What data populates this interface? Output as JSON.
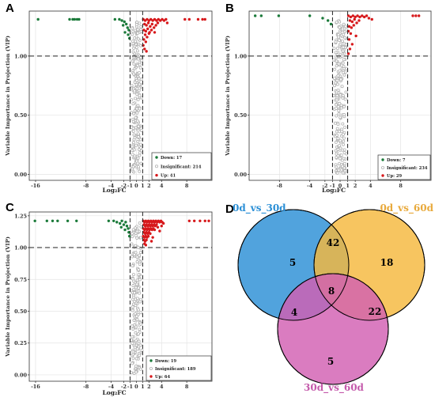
{
  "figure": {
    "panel_letters": [
      "A",
      "B",
      "C",
      "D"
    ],
    "colors": {
      "down": "#1b7a3a",
      "insignificant": "#b3b3b3",
      "up": "#d7191c",
      "venn_a": "#2b8fd6",
      "venn_b": "#f5b83d",
      "venn_c": "#d25fb2",
      "venn_a_label": "#2b8fd6",
      "venn_b_label": "#e8a93b",
      "venn_c_label": "#c45aab"
    }
  },
  "chart_data": [
    {
      "id": "A",
      "type": "scatter",
      "ylabel": "Variable Importance in Projection (VIP)",
      "xlabel": "Log₂FC",
      "xlim": [
        -17,
        12
      ],
      "ylim": [
        -0.05,
        1.38
      ],
      "x_ticks": [
        -16,
        -8,
        -4,
        -2,
        -1,
        0,
        1,
        2,
        4,
        8
      ],
      "x_tick_labels": [
        "-16",
        "-8",
        "-4",
        "-2",
        "-1",
        "0",
        "1",
        "2",
        "4",
        "8"
      ],
      "y_ticks": [
        0.0,
        0.5,
        1.0
      ],
      "y_tick_labels": [
        "0.00",
        "0.50",
        "1.00"
      ],
      "threshold_vlines": [
        -1,
        1
      ],
      "threshold_hline": 1.0,
      "grid": true,
      "legend_position": "bottom-right",
      "legend": [
        {
          "group": "down",
          "label": "Down: 17"
        },
        {
          "group": "insignificant",
          "label": "Insignificant: 214"
        },
        {
          "group": "up",
          "label": "Up: 41"
        }
      ],
      "counts": {
        "down": 17,
        "insignificant": 214,
        "up": 41
      },
      "down_points": [
        [
          -15.6,
          1.31
        ],
        [
          -10.6,
          1.31
        ],
        [
          -10.1,
          1.31
        ],
        [
          -9.8,
          1.31
        ],
        [
          -9.4,
          1.31
        ],
        [
          -9.1,
          1.31
        ],
        [
          -3.4,
          1.31
        ],
        [
          -2.7,
          1.31
        ],
        [
          -2.3,
          1.3
        ],
        [
          -1.9,
          1.29
        ],
        [
          -1.6,
          1.27
        ],
        [
          -1.4,
          1.24
        ],
        [
          -1.2,
          1.22
        ],
        [
          -1.8,
          1.2
        ],
        [
          -1.3,
          1.18
        ],
        [
          -1.1,
          1.15
        ],
        [
          -2.1,
          1.26
        ]
      ],
      "up_points": [
        [
          1.1,
          1.31
        ],
        [
          1.4,
          1.3
        ],
        [
          1.7,
          1.31
        ],
        [
          2.0,
          1.3
        ],
        [
          2.3,
          1.31
        ],
        [
          2.6,
          1.3
        ],
        [
          2.9,
          1.31
        ],
        [
          3.2,
          1.3
        ],
        [
          3.5,
          1.31
        ],
        [
          3.8,
          1.3
        ],
        [
          4.1,
          1.31
        ],
        [
          4.4,
          1.3
        ],
        [
          4.7,
          1.31
        ],
        [
          1.3,
          1.27
        ],
        [
          1.6,
          1.26
        ],
        [
          1.9,
          1.28
        ],
        [
          2.2,
          1.25
        ],
        [
          2.5,
          1.27
        ],
        [
          2.8,
          1.24
        ],
        [
          3.1,
          1.26
        ],
        [
          1.2,
          1.22
        ],
        [
          1.5,
          1.21
        ],
        [
          1.8,
          1.23
        ],
        [
          2.1,
          1.2
        ],
        [
          2.4,
          1.22
        ],
        [
          1.4,
          1.18
        ],
        [
          1.7,
          1.16
        ],
        [
          2.0,
          1.19
        ],
        [
          1.2,
          1.14
        ],
        [
          1.5,
          1.12
        ],
        [
          1.1,
          1.09
        ],
        [
          1.3,
          1.06
        ],
        [
          1.6,
          1.04
        ],
        [
          2.9,
          1.2
        ],
        [
          3.4,
          1.28
        ],
        [
          7.7,
          1.31
        ],
        [
          8.4,
          1.31
        ],
        [
          9.8,
          1.31
        ],
        [
          10.5,
          1.31
        ],
        [
          10.9,
          1.31
        ],
        [
          4.9,
          1.28
        ]
      ]
    },
    {
      "id": "B",
      "type": "scatter",
      "ylabel": "Variable Importance in Projection (VIP)",
      "xlabel": "Log₂FC",
      "xlim": [
        -12,
        12
      ],
      "ylim": [
        -0.05,
        1.38
      ],
      "x_ticks": [
        -8,
        -4,
        -2,
        -1,
        0,
        1,
        2,
        4,
        8
      ],
      "x_tick_labels": [
        "-8",
        "-4",
        "-2",
        "-1",
        "0",
        "1",
        "2",
        "4",
        "8"
      ],
      "y_ticks": [
        0.0,
        0.5,
        1.0
      ],
      "y_tick_labels": [
        "0.00",
        "0.50",
        "1.00"
      ],
      "threshold_vlines": [
        -1,
        1
      ],
      "threshold_hline": 1.0,
      "grid": true,
      "legend_position": "bottom-right",
      "legend": [
        {
          "group": "down",
          "label": "Down: 7"
        },
        {
          "group": "insignificant",
          "label": "Insignificant: 234"
        },
        {
          "group": "up",
          "label": "Up: 29"
        }
      ],
      "counts": {
        "down": 7,
        "insignificant": 234,
        "up": 29
      },
      "down_points": [
        [
          -11.2,
          1.34
        ],
        [
          -10.4,
          1.34
        ],
        [
          -8.1,
          1.34
        ],
        [
          -4.0,
          1.34
        ],
        [
          -2.3,
          1.32
        ],
        [
          -1.6,
          1.3
        ],
        [
          -1.2,
          1.27
        ]
      ],
      "up_points": [
        [
          1.1,
          1.34
        ],
        [
          1.4,
          1.33
        ],
        [
          1.7,
          1.34
        ],
        [
          2.0,
          1.33
        ],
        [
          2.3,
          1.34
        ],
        [
          2.6,
          1.33
        ],
        [
          2.9,
          1.34
        ],
        [
          3.2,
          1.33
        ],
        [
          3.5,
          1.34
        ],
        [
          1.3,
          1.3
        ],
        [
          1.6,
          1.29
        ],
        [
          1.9,
          1.31
        ],
        [
          2.2,
          1.28
        ],
        [
          2.5,
          1.3
        ],
        [
          1.2,
          1.25
        ],
        [
          1.5,
          1.24
        ],
        [
          1.8,
          1.26
        ],
        [
          1.1,
          1.21
        ],
        [
          1.4,
          1.19
        ],
        [
          1.2,
          1.14
        ],
        [
          1.6,
          1.1
        ],
        [
          1.3,
          1.06
        ],
        [
          1.1,
          1.02
        ],
        [
          2.1,
          1.17
        ],
        [
          3.8,
          1.32
        ],
        [
          9.6,
          1.34
        ],
        [
          10.0,
          1.34
        ],
        [
          10.4,
          1.34
        ],
        [
          4.2,
          1.31
        ]
      ]
    },
    {
      "id": "C",
      "type": "scatter",
      "ylabel": "Variable Importance in Projection (VIP)",
      "xlabel": "Log₂FC",
      "xlim": [
        -17,
        12
      ],
      "ylim": [
        -0.05,
        1.28
      ],
      "x_ticks": [
        -16,
        -8,
        -4,
        -2,
        -1,
        0,
        1,
        2,
        4,
        8
      ],
      "x_tick_labels": [
        "-16",
        "-8",
        "-4",
        "-2",
        "-1",
        "0",
        "1",
        "2",
        "4",
        "8"
      ],
      "y_ticks": [
        0.0,
        0.25,
        0.5,
        0.75,
        1.0,
        1.25
      ],
      "y_tick_labels": [
        "0.00",
        "0.25",
        "0.50",
        "0.75",
        "1.00",
        "1.25"
      ],
      "threshold_vlines": [
        -1,
        1
      ],
      "threshold_hline": 1.0,
      "grid": true,
      "legend_position": "bottom-right",
      "legend": [
        {
          "group": "down",
          "label": "Down: 19"
        },
        {
          "group": "insignificant",
          "label": "Insignificant: 189"
        },
        {
          "group": "up",
          "label": "Up: 64"
        }
      ],
      "counts": {
        "down": 19,
        "insignificant": 189,
        "up": 64
      },
      "down_points": [
        [
          -16.1,
          1.21
        ],
        [
          -14.2,
          1.21
        ],
        [
          -13.3,
          1.21
        ],
        [
          -12.5,
          1.21
        ],
        [
          -10.9,
          1.21
        ],
        [
          -9.5,
          1.21
        ],
        [
          -4.4,
          1.21
        ],
        [
          -3.6,
          1.21
        ],
        [
          -3.1,
          1.2
        ],
        [
          -2.6,
          1.19
        ],
        [
          -2.3,
          1.21
        ],
        [
          -2.0,
          1.18
        ],
        [
          -1.7,
          1.2
        ],
        [
          -1.5,
          1.17
        ],
        [
          -1.3,
          1.15
        ],
        [
          -1.8,
          1.14
        ],
        [
          -1.2,
          1.12
        ],
        [
          -1.1,
          1.09
        ],
        [
          -2.4,
          1.16
        ]
      ],
      "up_points": [
        [
          1.1,
          1.21
        ],
        [
          1.3,
          1.2
        ],
        [
          1.5,
          1.21
        ],
        [
          1.7,
          1.2
        ],
        [
          1.9,
          1.21
        ],
        [
          2.1,
          1.2
        ],
        [
          2.3,
          1.21
        ],
        [
          2.5,
          1.2
        ],
        [
          2.7,
          1.21
        ],
        [
          2.9,
          1.2
        ],
        [
          3.1,
          1.21
        ],
        [
          3.3,
          1.2
        ],
        [
          3.5,
          1.21
        ],
        [
          3.7,
          1.2
        ],
        [
          3.9,
          1.21
        ],
        [
          4.1,
          1.2
        ],
        [
          1.2,
          1.18
        ],
        [
          1.4,
          1.17
        ],
        [
          1.6,
          1.18
        ],
        [
          1.8,
          1.17
        ],
        [
          2.0,
          1.18
        ],
        [
          2.2,
          1.17
        ],
        [
          2.4,
          1.18
        ],
        [
          2.6,
          1.17
        ],
        [
          2.8,
          1.18
        ],
        [
          3.0,
          1.17
        ],
        [
          3.2,
          1.18
        ],
        [
          1.1,
          1.15
        ],
        [
          1.3,
          1.14
        ],
        [
          1.5,
          1.15
        ],
        [
          1.7,
          1.14
        ],
        [
          1.9,
          1.15
        ],
        [
          2.1,
          1.14
        ],
        [
          2.3,
          1.15
        ],
        [
          2.5,
          1.14
        ],
        [
          2.7,
          1.15
        ],
        [
          1.2,
          1.12
        ],
        [
          1.4,
          1.11
        ],
        [
          1.6,
          1.12
        ],
        [
          1.8,
          1.11
        ],
        [
          2.0,
          1.12
        ],
        [
          2.2,
          1.11
        ],
        [
          1.1,
          1.09
        ],
        [
          1.3,
          1.08
        ],
        [
          1.5,
          1.09
        ],
        [
          1.7,
          1.08
        ],
        [
          1.9,
          1.09
        ],
        [
          1.2,
          1.06
        ],
        [
          1.4,
          1.05
        ],
        [
          1.6,
          1.06
        ],
        [
          1.3,
          1.03
        ],
        [
          1.5,
          1.02
        ],
        [
          2.9,
          1.14
        ],
        [
          3.4,
          1.16
        ],
        [
          3.7,
          1.13
        ],
        [
          4.0,
          1.17
        ],
        [
          2.6,
          1.08
        ],
        [
          2.4,
          1.05
        ],
        [
          8.4,
          1.21
        ],
        [
          9.2,
          1.21
        ],
        [
          10.1,
          1.21
        ],
        [
          10.9,
          1.21
        ],
        [
          11.5,
          1.21
        ],
        [
          4.3,
          1.19
        ]
      ]
    },
    {
      "id": "D",
      "type": "venn",
      "sets": [
        "0d_vs_30d",
        "0d_vs_60d",
        "30d_vs_60d"
      ],
      "regions": {
        "a_only": 5,
        "b_only": 18,
        "c_only": 5,
        "ab_only": 42,
        "ac_only": 4,
        "bc_only": 22,
        "abc": 8
      }
    }
  ]
}
